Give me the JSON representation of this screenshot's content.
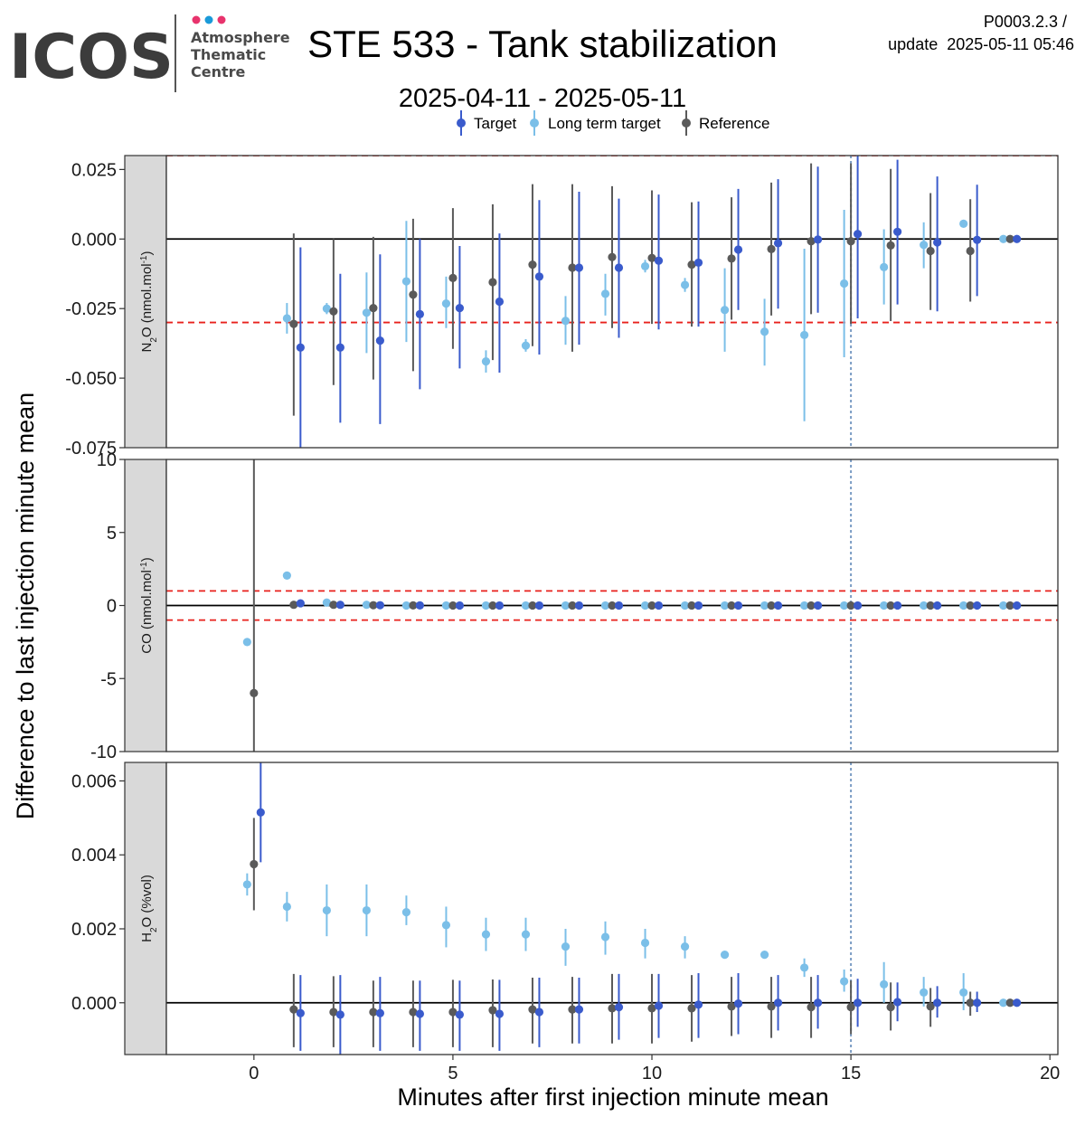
{
  "header": {
    "logo_text": "ICOS",
    "logo_sub": [
      "Atmosphere",
      "Thematic",
      "Centre"
    ],
    "title": "STE 533 - Tank stabilization",
    "subtitle": "2025-04-11 - 2025-05-11",
    "meta_line1": "P0003.2.3 /",
    "meta_line2": "update  2025-05-11 05:46"
  },
  "colors": {
    "target": "#3a5bcc",
    "long_term_target": "#7bbfe8",
    "reference": "#5a5a5a",
    "threshold": "#e8211c",
    "marker_line": "#7a9cc4",
    "strip": "#d9d9d9",
    "logo_dot1": "#e8336d",
    "logo_dot2": "#1a9ad9",
    "logo_dot3": "#e8336d"
  },
  "chart_data": {
    "type": "scatter",
    "xlabel": "Minutes after first injection minute mean",
    "ylabel": "Difference to last injection minute mean",
    "xlim": [
      -2.2,
      20.2
    ],
    "x_ticks": [
      0,
      5,
      10,
      15,
      20
    ],
    "x_tick_labels": [
      "0",
      "5",
      "10",
      "15",
      "20"
    ],
    "vline_x": 15,
    "legend": {
      "placement": "top",
      "entries": [
        "Target",
        "Long term target",
        "Reference"
      ]
    },
    "panels": [
      {
        "label_main": "N",
        "label_sub": "2",
        "label_rest": "O (nmol.mol",
        "label_sup": "-1",
        "label_end": ")",
        "ylim": [
          -0.075,
          0.03
        ],
        "y_ticks": [
          0.025,
          0.0,
          -0.025,
          -0.05,
          -0.075
        ],
        "y_tick_labels": [
          "0.025",
          "0.000",
          "-0.025",
          "-0.050",
          "-0.075"
        ],
        "thresholds": [
          -0.03,
          0.03
        ],
        "series": [
          {
            "name": "Long term target",
            "key": "long_term_target",
            "x": [
              1,
              2,
              3,
              4,
              5,
              6,
              7,
              8,
              9,
              10,
              11,
              12,
              13,
              14,
              15,
              16,
              17,
              18,
              19
            ],
            "y": [
              -0.0285,
              -0.025,
              -0.0265,
              -0.0152,
              -0.0232,
              -0.044,
              -0.0383,
              -0.0294,
              -0.0197,
              -0.0098,
              -0.0165,
              -0.0255,
              -0.0333,
              -0.0345,
              -0.016,
              -0.0101,
              -0.0021,
              0.0055,
              0.0
            ],
            "lo": [
              -0.034,
              -0.027,
              -0.041,
              -0.037,
              -0.032,
              -0.048,
              -0.0405,
              -0.038,
              -0.0275,
              -0.012,
              -0.019,
              -0.0405,
              -0.0455,
              -0.0655,
              -0.0425,
              -0.0235,
              -0.0105,
              0.0045,
              -0.0005
            ],
            "hi": [
              -0.023,
              -0.023,
              -0.012,
              0.0065,
              -0.0135,
              -0.04,
              -0.036,
              -0.0205,
              -0.0125,
              -0.0075,
              -0.014,
              -0.0105,
              -0.0215,
              -0.0035,
              0.0105,
              0.0035,
              0.006,
              0.0065,
              0.0005
            ]
          },
          {
            "name": "Reference",
            "key": "reference",
            "x": [
              1,
              2,
              3,
              4,
              5,
              6,
              7,
              8,
              9,
              10,
              11,
              12,
              13,
              14,
              15,
              16,
              17,
              18,
              19
            ],
            "y": [
              -0.0305,
              -0.026,
              -0.0248,
              -0.02,
              -0.014,
              -0.0155,
              -0.0092,
              -0.0103,
              -0.0065,
              -0.0068,
              -0.0092,
              -0.007,
              -0.0036,
              -0.0008,
              -0.0008,
              -0.0023,
              -0.0043,
              -0.0043,
              0.0
            ],
            "lo": [
              -0.0635,
              -0.0525,
              -0.0505,
              -0.0475,
              -0.0395,
              -0.0435,
              -0.0385,
              -0.0405,
              -0.032,
              -0.0305,
              -0.0315,
              -0.029,
              -0.0275,
              -0.027,
              -0.0305,
              -0.0295,
              -0.0255,
              -0.0225,
              -0.0005
            ],
            "hi": [
              0.002,
              0.0,
              0.0008,
              0.0073,
              0.0111,
              0.0125,
              0.0197,
              0.0197,
              0.019,
              0.0175,
              0.0132,
              0.015,
              0.0203,
              0.0272,
              0.0272,
              0.0252,
              0.0165,
              0.0143,
              0.0005
            ]
          },
          {
            "name": "Target",
            "key": "target",
            "x": [
              1,
              2,
              3,
              4,
              5,
              6,
              7,
              8,
              9,
              10,
              11,
              12,
              13,
              14,
              15,
              16,
              17,
              18,
              19
            ],
            "y": [
              -0.039,
              -0.039,
              -0.0365,
              -0.027,
              -0.0248,
              -0.0225,
              -0.0135,
              -0.0103,
              -0.0103,
              -0.0078,
              -0.0085,
              -0.0038,
              -0.0015,
              -0.0002,
              0.0018,
              0.0026,
              -0.0012,
              -0.0003,
              0.0
            ],
            "lo": [
              -0.075,
              -0.066,
              -0.0665,
              -0.054,
              -0.0465,
              -0.048,
              -0.0415,
              -0.038,
              -0.0355,
              -0.0325,
              -0.0315,
              -0.0255,
              -0.025,
              -0.0265,
              -0.0285,
              -0.0235,
              -0.026,
              -0.0205,
              -0.0005
            ],
            "hi": [
              -0.003,
              -0.0125,
              -0.0055,
              0.0,
              -0.0025,
              0.002,
              0.014,
              0.017,
              0.0145,
              0.016,
              0.0135,
              0.018,
              0.0215,
              0.026,
              0.03,
              0.0285,
              0.0225,
              0.0195,
              0.0005
            ]
          }
        ]
      },
      {
        "label_main": "CO (nmol.mol",
        "label_sup": "-1",
        "label_end": ")",
        "ylim": [
          -10,
          10
        ],
        "y_ticks": [
          10,
          5,
          0,
          -5,
          -10
        ],
        "y_tick_labels": [
          "10",
          "5",
          "0",
          "-5",
          "-10"
        ],
        "thresholds": [
          -1,
          1
        ],
        "series": [
          {
            "name": "Long term target",
            "key": "long_term_target",
            "x": [
              0,
              1,
              2,
              3,
              4,
              5,
              6,
              7,
              8,
              9,
              10,
              11,
              12,
              13,
              14,
              15,
              16,
              17,
              18,
              19
            ],
            "y": [
              -2.5,
              2.05,
              0.2,
              0.05,
              0.0,
              0.0,
              0.0,
              0.0,
              0.0,
              0.0,
              0.0,
              0.0,
              0.0,
              0.0,
              0.0,
              0.0,
              0.0,
              0.0,
              0.0,
              0.0
            ],
            "lo": [
              -2.6,
              1.95,
              0.15,
              0.0,
              -0.05,
              -0.05,
              -0.05,
              -0.05,
              -0.05,
              -0.05,
              -0.05,
              -0.05,
              -0.05,
              -0.05,
              -0.05,
              -0.05,
              -0.05,
              -0.05,
              -0.05,
              -0.05
            ],
            "hi": [
              -2.4,
              2.15,
              0.25,
              0.1,
              0.05,
              0.05,
              0.05,
              0.05,
              0.05,
              0.05,
              0.05,
              0.05,
              0.05,
              0.05,
              0.05,
              0.05,
              0.05,
              0.05,
              0.05,
              0.05
            ]
          },
          {
            "name": "Reference",
            "key": "reference",
            "x": [
              0,
              1,
              2,
              3,
              4,
              5,
              6,
              7,
              8,
              9,
              10,
              11,
              12,
              13,
              14,
              15,
              16,
              17,
              18,
              19
            ],
            "y": [
              -6.0,
              0.05,
              0.05,
              0.02,
              0.01,
              0.0,
              0.0,
              0.0,
              0.0,
              0.0,
              0.0,
              0.0,
              0.0,
              0.0,
              0.0,
              0.0,
              0.0,
              0.0,
              0.0,
              0.0
            ],
            "lo": [
              -10,
              -0.05,
              -0.05,
              -0.05,
              -0.05,
              -0.05,
              -0.05,
              -0.05,
              -0.05,
              -0.05,
              -0.05,
              -0.05,
              -0.05,
              -0.05,
              -0.05,
              -0.05,
              -0.05,
              -0.05,
              -0.05,
              -0.05
            ],
            "hi": [
              10,
              0.15,
              0.15,
              0.1,
              0.07,
              0.05,
              0.05,
              0.05,
              0.05,
              0.05,
              0.05,
              0.05,
              0.05,
              0.05,
              0.05,
              0.05,
              0.05,
              0.05,
              0.05,
              0.05
            ]
          },
          {
            "name": "Target",
            "key": "target",
            "x": [
              1,
              2,
              3,
              4,
              5,
              6,
              7,
              8,
              9,
              10,
              11,
              12,
              13,
              14,
              15,
              16,
              17,
              18,
              19
            ],
            "y": [
              0.15,
              0.05,
              0.02,
              0.01,
              0.0,
              0.0,
              0.0,
              0.0,
              0.0,
              0.0,
              0.0,
              0.0,
              0.0,
              0.0,
              0.0,
              0.0,
              0.0,
              0.0,
              0.0
            ],
            "lo": [
              0.05,
              -0.05,
              -0.05,
              -0.05,
              -0.05,
              -0.05,
              -0.05,
              -0.05,
              -0.05,
              -0.05,
              -0.05,
              -0.05,
              -0.05,
              -0.05,
              -0.05,
              -0.05,
              -0.05,
              -0.05,
              -0.05
            ],
            "hi": [
              0.25,
              0.15,
              0.1,
              0.07,
              0.05,
              0.05,
              0.05,
              0.05,
              0.05,
              0.05,
              0.05,
              0.05,
              0.05,
              0.05,
              0.05,
              0.05,
              0.05,
              0.05,
              0.05
            ]
          }
        ]
      },
      {
        "label_main": "H",
        "label_sub": "2",
        "label_rest": "O (%vol)",
        "ylim": [
          -0.0014,
          0.0065
        ],
        "y_ticks": [
          0.006,
          0.004,
          0.002,
          0.0
        ],
        "y_tick_labels": [
          "0.006",
          "0.004",
          "0.002",
          "0.000"
        ],
        "thresholds": [],
        "series": [
          {
            "name": "Long term target",
            "key": "long_term_target",
            "x": [
              0,
              1,
              2,
              3,
              4,
              5,
              6,
              7,
              8,
              9,
              10,
              11,
              12,
              13,
              14,
              15,
              16,
              17,
              18,
              19
            ],
            "y": [
              0.0032,
              0.0026,
              0.0025,
              0.0025,
              0.00245,
              0.0021,
              0.00185,
              0.00185,
              0.00152,
              0.00178,
              0.00162,
              0.00152,
              0.0013,
              0.0013,
              0.00095,
              0.00058,
              0.0005,
              0.00028,
              0.00028,
              0.0
            ],
            "lo": [
              0.0029,
              0.0022,
              0.0018,
              0.0018,
              0.0021,
              0.0015,
              0.0014,
              0.0014,
              0.001,
              0.0013,
              0.0012,
              0.0012,
              0.0012,
              0.00125,
              0.0007,
              0.0003,
              0.0,
              -0.0001,
              -0.0002,
              -5e-05
            ],
            "hi": [
              0.0035,
              0.003,
              0.0032,
              0.0032,
              0.0029,
              0.0026,
              0.0023,
              0.0023,
              0.002,
              0.0022,
              0.002,
              0.0018,
              0.0014,
              0.00135,
              0.0012,
              0.0009,
              0.0011,
              0.0007,
              0.0008,
              5e-05
            ]
          },
          {
            "name": "Reference",
            "key": "reference",
            "x": [
              0,
              1,
              2,
              3,
              4,
              5,
              6,
              7,
              8,
              9,
              10,
              11,
              12,
              13,
              14,
              15,
              16,
              17,
              18,
              19
            ],
            "y": [
              0.00375,
              -0.00018,
              -0.00025,
              -0.00025,
              -0.00025,
              -0.00025,
              -0.0002,
              -0.00018,
              -0.00018,
              -0.00015,
              -0.00015,
              -0.00015,
              -0.0001,
              -0.0001,
              -0.00012,
              -0.00012,
              -0.00012,
              -0.0001,
              0.0,
              0.0
            ],
            "lo": [
              0.0025,
              -0.0012,
              -0.0012,
              -0.0012,
              -0.0012,
              -0.0012,
              -0.0012,
              -0.0011,
              -0.0011,
              -0.0011,
              -0.0011,
              -0.00105,
              -0.0009,
              -0.00095,
              -0.00095,
              -0.00085,
              -0.00075,
              -0.00065,
              -0.00035,
              -5e-05
            ],
            "hi": [
              0.005,
              0.00078,
              0.00072,
              0.0006,
              0.0006,
              0.00062,
              0.00063,
              0.00068,
              0.0007,
              0.00078,
              0.00078,
              0.00075,
              0.0007,
              0.0007,
              0.0007,
              0.0006,
              0.00055,
              0.0004,
              0.0003,
              5e-05
            ]
          },
          {
            "name": "Target",
            "key": "target",
            "x": [
              0,
              1,
              2,
              3,
              4,
              5,
              6,
              7,
              8,
              9,
              10,
              11,
              12,
              13,
              14,
              15,
              16,
              17,
              18,
              19
            ],
            "y": [
              0.00515,
              -0.00028,
              -0.00032,
              -0.00028,
              -0.0003,
              -0.00032,
              -0.0003,
              -0.00025,
              -0.00018,
              -0.00012,
              -8e-05,
              -5e-05,
              -2e-05,
              0.0,
              0.0,
              0.0,
              2e-05,
              0.0,
              0.0,
              0.0
            ],
            "lo": [
              0.0038,
              -0.0013,
              -0.0014,
              -0.0013,
              -0.0013,
              -0.0013,
              -0.0013,
              -0.0012,
              -0.0011,
              -0.001,
              -0.00095,
              -0.00095,
              -0.00085,
              -0.00075,
              -0.0007,
              -0.00065,
              -0.0005,
              -0.0004,
              -0.00025,
              -5e-05
            ],
            "hi": [
              0.0065,
              0.00075,
              0.00075,
              0.0007,
              0.0006,
              0.0006,
              0.00062,
              0.00068,
              0.00068,
              0.00078,
              0.00078,
              0.0008,
              0.0008,
              0.00075,
              0.00075,
              0.00065,
              0.00055,
              0.00045,
              0.0003,
              5e-05
            ]
          }
        ]
      }
    ]
  }
}
